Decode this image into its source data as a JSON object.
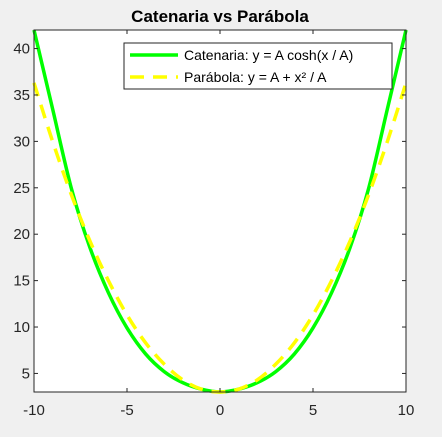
{
  "chart_data": {
    "type": "line",
    "title": "Catenaria vs Parábola",
    "xlabel": "",
    "ylabel": "",
    "xlim": [
      -10,
      10
    ],
    "ylim": [
      3,
      42
    ],
    "xticks": [
      -10,
      -5,
      0,
      5,
      10
    ],
    "yticks": [
      5,
      10,
      15,
      20,
      25,
      30,
      35,
      40
    ],
    "grid": false,
    "legend_position": "top-right",
    "series": [
      {
        "name": "Catenaria: y = A cosh(x / A)",
        "color": "#00ff00",
        "style": "solid",
        "x": [
          -10,
          -9,
          -8,
          -7,
          -6,
          -5,
          -4,
          -3,
          -2,
          -1,
          0,
          1,
          2,
          3,
          4,
          5,
          6,
          7,
          8,
          9,
          10
        ],
        "y": [
          42.0,
          33.5,
          25.0,
          18.6,
          13.7,
          9.9,
          7.1,
          5.2,
          4.0,
          3.3,
          3.0,
          3.3,
          4.0,
          5.2,
          7.1,
          9.9,
          13.7,
          18.6,
          25.0,
          33.5,
          42.0
        ]
      },
      {
        "name": "Parábola:  y  =  A  +  x²  /  A",
        "color": "#ffff00",
        "style": "dashed",
        "x": [
          -10,
          -9,
          -8,
          -7,
          -6,
          -5,
          -4,
          -3,
          -2,
          -1,
          0,
          1,
          2,
          3,
          4,
          5,
          6,
          7,
          8,
          9,
          10
        ],
        "y": [
          36.3,
          30.0,
          24.3,
          19.3,
          15.0,
          11.3,
          8.3,
          6.0,
          4.3,
          3.3,
          3.0,
          3.3,
          4.3,
          6.0,
          8.3,
          11.3,
          15.0,
          19.3,
          24.3,
          30.0,
          36.3
        ]
      }
    ]
  }
}
